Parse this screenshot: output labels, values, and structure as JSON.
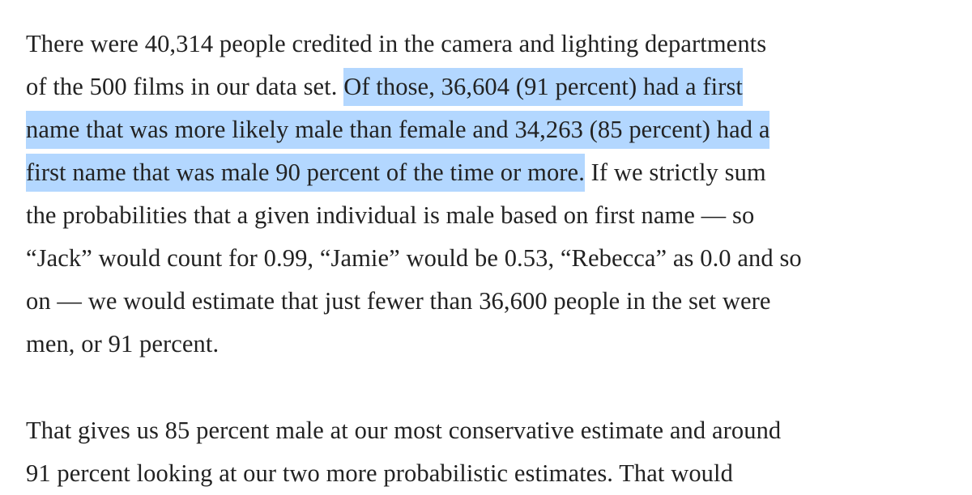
{
  "article": {
    "paragraphs": [
      {
        "lines": [
          {
            "before": "There were 40,314 people credited in the camera and lighting departments",
            "highlight": "",
            "after": ""
          },
          {
            "before": "of the 500 films in our data set. ",
            "highlight": "Of those, 36,604 (91 percent) had a first",
            "after": ""
          },
          {
            "before": "",
            "highlight": "name that was more likely male than female and 34,263 (85 percent) had a",
            "after": ""
          },
          {
            "before": "",
            "highlight": "first name that was male 90 percent of the time or more.",
            "after": " If we strictly sum"
          },
          {
            "before": "the probabilities that a given individual is male based on first name — so",
            "highlight": "",
            "after": ""
          },
          {
            "before": "“Jack” would count for 0.99, “Jamie” would be 0.53, “Rebecca” as 0.0 and so",
            "highlight": "",
            "after": ""
          },
          {
            "before": "on — we would estimate that just fewer than 36,600 people in the set were",
            "highlight": "",
            "after": ""
          },
          {
            "before": "men, or 91 percent.",
            "highlight": "",
            "after": ""
          }
        ]
      },
      {
        "lines": [
          {
            "before": "That gives us 85 percent male at our most conservative estimate and around",
            "highlight": "",
            "after": ""
          },
          {
            "before": "91 percent looking at our two more probabilistic estimates. That would",
            "highlight": "",
            "after": ""
          }
        ]
      }
    ]
  },
  "colors": {
    "text": "#222222",
    "selection_highlight": "#b3d7ff",
    "background": "#ffffff"
  }
}
